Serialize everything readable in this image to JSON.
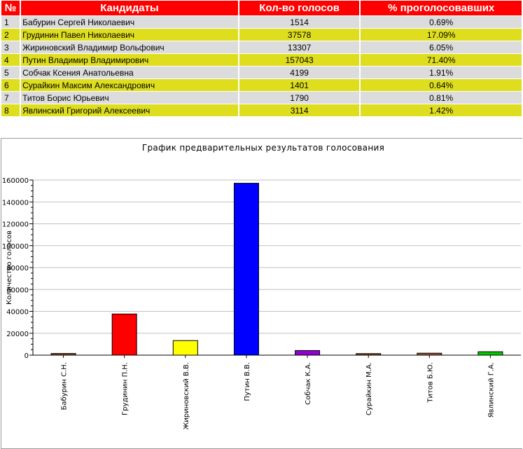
{
  "table": {
    "headers": {
      "num": "№",
      "name": "Кандидаты",
      "votes": "Кол-во голосов",
      "pct": "% проголосовавших"
    },
    "rows": [
      {
        "num": "1",
        "name": "Бабурин Сергей Николаевич",
        "votes": "1514",
        "pct": "0.69%"
      },
      {
        "num": "2",
        "name": "Грудинин Павел Николаевич",
        "votes": "37578",
        "pct": "17.09%"
      },
      {
        "num": "3",
        "name": "Жириновский Владимир Вольфович",
        "votes": "13307",
        "pct": "6.05%"
      },
      {
        "num": "4",
        "name": "Путин Владимир Владимирович",
        "votes": "157043",
        "pct": "71.40%"
      },
      {
        "num": "5",
        "name": "Собчак Ксения Анатольевна",
        "votes": "4199",
        "pct": "1.91%"
      },
      {
        "num": "6",
        "name": "Сурайкин Максим Александрович",
        "votes": "1401",
        "pct": "0.64%"
      },
      {
        "num": "7",
        "name": "Титов Борис Юрьевич",
        "votes": "1790",
        "pct": "0.81%"
      },
      {
        "num": "8",
        "name": "Явлинский Григорий Алексеевич",
        "votes": "3114",
        "pct": "1.42%"
      }
    ],
    "colors": {
      "header_bg": "#ff0000",
      "row_odd": "#dcdcdc",
      "row_even": "#dede1f"
    }
  },
  "chart_data": {
    "type": "bar",
    "title": "График предварительных результатов голосования",
    "ylabel": "Количество голосов",
    "xlabel": "",
    "categories": [
      "Бабурин С.Н.",
      "Грудинин П.Н.",
      "Жириновский В.В.",
      "Путин В.В.",
      "Собчак К.А.",
      "Сурайкин М.А.",
      "Титов Б.Ю.",
      "Явлинский Г.А."
    ],
    "values": [
      1514,
      37578,
      13307,
      157043,
      4199,
      1401,
      1790,
      3114
    ],
    "colors": [
      "#8b4513",
      "#ff0000",
      "#ffff00",
      "#0000ff",
      "#9400d3",
      "#8b4513",
      "#a0522d",
      "#00cc00"
    ],
    "ylim": [
      0,
      160000
    ],
    "yticks": [
      0,
      20000,
      40000,
      60000,
      80000,
      100000,
      120000,
      140000,
      160000
    ],
    "ytick_labels": [
      "0",
      "20000",
      "40000",
      "60000",
      "80000",
      "100000",
      "120000",
      "140000",
      "160000"
    ],
    "grid": true
  }
}
